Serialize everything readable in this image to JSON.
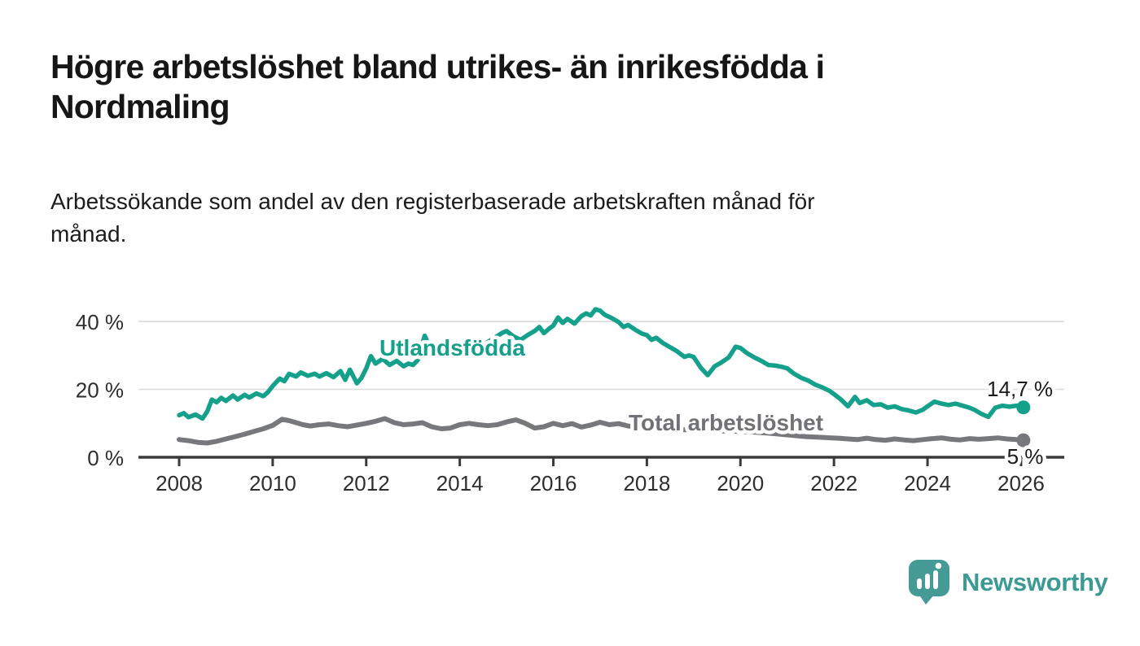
{
  "header": {
    "title_lines": [
      "Högre arbetslöshet bland utrikes- än inrikesfödda i",
      "Nordmaling"
    ],
    "subtitle_lines": [
      "Arbetssökande som andel av den registerbaserade arbetskraften månad för",
      "månad."
    ]
  },
  "footer": {
    "brand_name": "Newsworthy",
    "brand_color": "#3c9a94",
    "logo_color": "#459a95",
    "logo_icon": "speech-bubble-bar-chart-icon"
  },
  "chart_data": {
    "type": "line",
    "x_axis": {
      "tick_values": [
        2008,
        2010,
        2012,
        2014,
        2016,
        2018,
        2020,
        2022,
        2024,
        2026
      ],
      "tick_labels": [
        "2008",
        "2010",
        "2012",
        "2014",
        "2016",
        "2018",
        "2020",
        "2022",
        "2024",
        "2026"
      ],
      "range": [
        2007.1,
        2026.9
      ]
    },
    "y_axis": {
      "ticks": [
        {
          "value": 0,
          "label": "0 %"
        },
        {
          "value": 20,
          "label": "20 %"
        },
        {
          "value": 40,
          "label": "40 %"
        }
      ],
      "range": [
        0,
        47
      ],
      "grid": true
    },
    "legend_position": "inline-labels",
    "series": [
      {
        "name": "Utlandsfödda",
        "color": "#14a08b",
        "end_label": "14,7 %",
        "end_value": 14.7,
        "points": [
          [
            2008.0,
            12.4
          ],
          [
            2008.1,
            13.0
          ],
          [
            2008.2,
            11.8
          ],
          [
            2008.35,
            12.6
          ],
          [
            2008.5,
            11.4
          ],
          [
            2008.6,
            13.5
          ],
          [
            2008.7,
            17.0
          ],
          [
            2008.8,
            16.2
          ],
          [
            2008.9,
            17.5
          ],
          [
            2009.0,
            16.6
          ],
          [
            2009.15,
            18.2
          ],
          [
            2009.25,
            17.0
          ],
          [
            2009.4,
            18.4
          ],
          [
            2009.5,
            17.6
          ],
          [
            2009.65,
            18.8
          ],
          [
            2009.8,
            18.0
          ],
          [
            2009.9,
            19.2
          ],
          [
            2010.0,
            21.0
          ],
          [
            2010.15,
            23.2
          ],
          [
            2010.25,
            22.4
          ],
          [
            2010.35,
            24.6
          ],
          [
            2010.5,
            23.8
          ],
          [
            2010.6,
            25.0
          ],
          [
            2010.75,
            24.0
          ],
          [
            2010.9,
            24.6
          ],
          [
            2011.0,
            23.8
          ],
          [
            2011.15,
            24.8
          ],
          [
            2011.3,
            23.6
          ],
          [
            2011.45,
            25.4
          ],
          [
            2011.55,
            22.8
          ],
          [
            2011.65,
            25.8
          ],
          [
            2011.8,
            21.8
          ],
          [
            2011.9,
            23.4
          ],
          [
            2012.0,
            26.2
          ],
          [
            2012.1,
            29.8
          ],
          [
            2012.2,
            27.6
          ],
          [
            2012.35,
            29.0
          ],
          [
            2012.5,
            27.2
          ],
          [
            2012.65,
            28.4
          ],
          [
            2012.8,
            26.8
          ],
          [
            2012.9,
            27.6
          ],
          [
            2013.0,
            27.2
          ],
          [
            2013.1,
            28.6
          ],
          [
            2013.25,
            35.8
          ],
          [
            2013.4,
            31.0
          ],
          [
            2013.55,
            29.8
          ],
          [
            2013.7,
            31.6
          ],
          [
            2013.85,
            30.8
          ],
          [
            2014.0,
            32.2
          ],
          [
            2014.15,
            31.4
          ],
          [
            2014.3,
            33.0
          ],
          [
            2014.45,
            32.4
          ],
          [
            2014.6,
            34.0
          ],
          [
            2014.75,
            35.2
          ],
          [
            2014.9,
            36.6
          ],
          [
            2015.0,
            37.2
          ],
          [
            2015.15,
            35.6
          ],
          [
            2015.3,
            34.6
          ],
          [
            2015.45,
            36.0
          ],
          [
            2015.6,
            37.2
          ],
          [
            2015.7,
            38.4
          ],
          [
            2015.8,
            36.6
          ],
          [
            2015.9,
            37.8
          ],
          [
            2016.0,
            38.8
          ],
          [
            2016.1,
            41.2
          ],
          [
            2016.2,
            39.6
          ],
          [
            2016.3,
            40.8
          ],
          [
            2016.45,
            39.4
          ],
          [
            2016.6,
            41.6
          ],
          [
            2016.7,
            42.4
          ],
          [
            2016.8,
            41.8
          ],
          [
            2016.9,
            43.6
          ],
          [
            2017.0,
            43.2
          ],
          [
            2017.1,
            42.0
          ],
          [
            2017.25,
            41.0
          ],
          [
            2017.4,
            39.8
          ],
          [
            2017.5,
            38.4
          ],
          [
            2017.6,
            39.0
          ],
          [
            2017.75,
            37.6
          ],
          [
            2017.9,
            36.4
          ],
          [
            2018.0,
            36.0
          ],
          [
            2018.1,
            34.6
          ],
          [
            2018.2,
            35.2
          ],
          [
            2018.35,
            33.6
          ],
          [
            2018.5,
            32.4
          ],
          [
            2018.65,
            31.2
          ],
          [
            2018.8,
            29.6
          ],
          [
            2018.9,
            30.0
          ],
          [
            2019.0,
            29.6
          ],
          [
            2019.15,
            26.4
          ],
          [
            2019.3,
            24.2
          ],
          [
            2019.45,
            26.8
          ],
          [
            2019.6,
            28.0
          ],
          [
            2019.75,
            29.4
          ],
          [
            2019.9,
            32.6
          ],
          [
            2020.0,
            32.2
          ],
          [
            2020.15,
            30.6
          ],
          [
            2020.3,
            29.4
          ],
          [
            2020.45,
            28.4
          ],
          [
            2020.6,
            27.2
          ],
          [
            2020.75,
            27.0
          ],
          [
            2020.9,
            26.6
          ],
          [
            2021.0,
            26.2
          ],
          [
            2021.15,
            24.6
          ],
          [
            2021.3,
            23.4
          ],
          [
            2021.45,
            22.6
          ],
          [
            2021.6,
            21.4
          ],
          [
            2021.75,
            20.6
          ],
          [
            2021.9,
            19.6
          ],
          [
            2022.0,
            18.6
          ],
          [
            2022.15,
            17.0
          ],
          [
            2022.3,
            15.0
          ],
          [
            2022.45,
            17.8
          ],
          [
            2022.55,
            16.0
          ],
          [
            2022.7,
            16.8
          ],
          [
            2022.85,
            15.4
          ],
          [
            2023.0,
            15.6
          ],
          [
            2023.15,
            14.6
          ],
          [
            2023.3,
            15.0
          ],
          [
            2023.45,
            14.2
          ],
          [
            2023.6,
            13.8
          ],
          [
            2023.75,
            13.2
          ],
          [
            2023.9,
            14.0
          ],
          [
            2024.0,
            15.0
          ],
          [
            2024.15,
            16.4
          ],
          [
            2024.3,
            15.8
          ],
          [
            2024.45,
            15.4
          ],
          [
            2024.6,
            15.8
          ],
          [
            2024.75,
            15.2
          ],
          [
            2024.9,
            14.6
          ],
          [
            2025.0,
            14.0
          ],
          [
            2025.15,
            12.8
          ],
          [
            2025.3,
            11.9
          ],
          [
            2025.45,
            14.6
          ],
          [
            2025.6,
            15.2
          ],
          [
            2025.75,
            14.9
          ],
          [
            2025.9,
            15.2
          ],
          [
            2026.05,
            14.7
          ]
        ]
      },
      {
        "name": "Total arbetslöshet",
        "color": "#77787c",
        "end_label": "5 %",
        "end_value": 5.0,
        "points": [
          [
            2008.0,
            5.2
          ],
          [
            2008.2,
            4.9
          ],
          [
            2008.4,
            4.4
          ],
          [
            2008.6,
            4.2
          ],
          [
            2008.8,
            4.7
          ],
          [
            2009.0,
            5.4
          ],
          [
            2009.2,
            6.1
          ],
          [
            2009.4,
            6.8
          ],
          [
            2009.6,
            7.6
          ],
          [
            2009.8,
            8.4
          ],
          [
            2010.0,
            9.4
          ],
          [
            2010.2,
            11.2
          ],
          [
            2010.35,
            10.8
          ],
          [
            2010.5,
            10.2
          ],
          [
            2010.65,
            9.6
          ],
          [
            2010.8,
            9.2
          ],
          [
            2011.0,
            9.6
          ],
          [
            2011.2,
            9.8
          ],
          [
            2011.4,
            9.3
          ],
          [
            2011.6,
            9.0
          ],
          [
            2011.8,
            9.5
          ],
          [
            2012.0,
            10.0
          ],
          [
            2012.2,
            10.6
          ],
          [
            2012.4,
            11.4
          ],
          [
            2012.6,
            10.2
          ],
          [
            2012.8,
            9.6
          ],
          [
            2013.0,
            9.8
          ],
          [
            2013.2,
            10.2
          ],
          [
            2013.4,
            9.0
          ],
          [
            2013.6,
            8.4
          ],
          [
            2013.8,
            8.6
          ],
          [
            2014.0,
            9.6
          ],
          [
            2014.2,
            10.0
          ],
          [
            2014.4,
            9.6
          ],
          [
            2014.6,
            9.3
          ],
          [
            2014.8,
            9.6
          ],
          [
            2015.0,
            10.4
          ],
          [
            2015.2,
            11.0
          ],
          [
            2015.4,
            10.0
          ],
          [
            2015.6,
            8.6
          ],
          [
            2015.8,
            9.0
          ],
          [
            2016.0,
            10.0
          ],
          [
            2016.2,
            9.3
          ],
          [
            2016.4,
            9.9
          ],
          [
            2016.6,
            8.9
          ],
          [
            2016.8,
            9.5
          ],
          [
            2017.0,
            10.3
          ],
          [
            2017.2,
            9.6
          ],
          [
            2017.4,
            9.9
          ],
          [
            2017.6,
            9.2
          ],
          [
            2017.8,
            9.0
          ],
          [
            2018.0,
            8.8
          ],
          [
            2018.3,
            8.5
          ],
          [
            2018.6,
            8.2
          ],
          [
            2019.0,
            8.0
          ],
          [
            2019.4,
            7.8
          ],
          [
            2019.8,
            7.7
          ],
          [
            2020.2,
            7.5
          ],
          [
            2020.6,
            7.1
          ],
          [
            2021.0,
            6.6
          ],
          [
            2021.4,
            6.1
          ],
          [
            2021.8,
            5.8
          ],
          [
            2022.1,
            5.6
          ],
          [
            2022.3,
            5.4
          ],
          [
            2022.5,
            5.2
          ],
          [
            2022.7,
            5.6
          ],
          [
            2022.9,
            5.2
          ],
          [
            2023.1,
            5.0
          ],
          [
            2023.3,
            5.4
          ],
          [
            2023.5,
            5.1
          ],
          [
            2023.7,
            4.9
          ],
          [
            2023.9,
            5.2
          ],
          [
            2024.1,
            5.5
          ],
          [
            2024.3,
            5.7
          ],
          [
            2024.5,
            5.3
          ],
          [
            2024.7,
            5.1
          ],
          [
            2024.9,
            5.5
          ],
          [
            2025.1,
            5.3
          ],
          [
            2025.3,
            5.5
          ],
          [
            2025.5,
            5.7
          ],
          [
            2025.7,
            5.4
          ],
          [
            2025.9,
            5.2
          ],
          [
            2026.05,
            5.0
          ]
        ]
      }
    ]
  }
}
